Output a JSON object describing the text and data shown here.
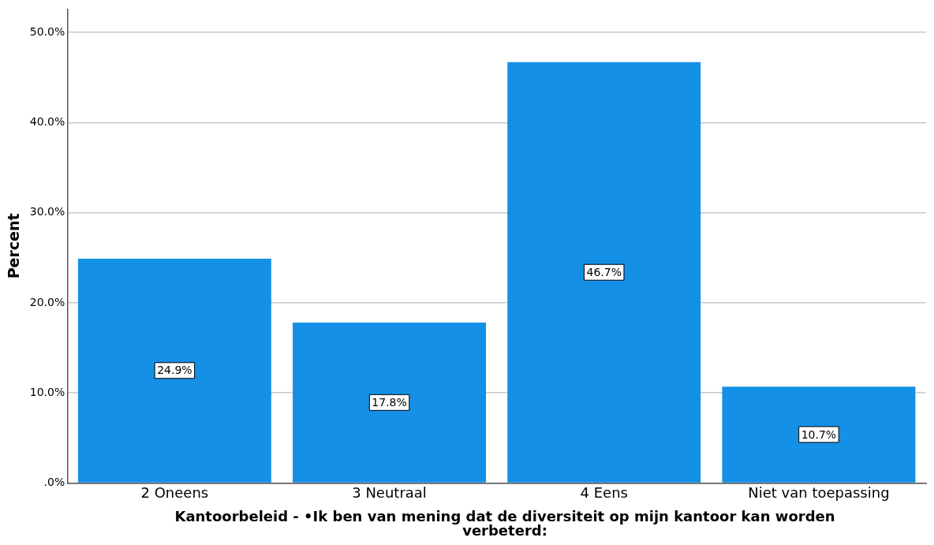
{
  "chart_data": {
    "type": "bar",
    "xlabel": "Kantoorbeleid - •Ik ben van mening dat de diversiteit op mijn kantoor kan worden verbeterd:",
    "ylabel": "Percent",
    "categories": [
      "2 Oneens",
      "3 Neutraal",
      "4 Eens",
      "Niet van toepassing"
    ],
    "values": [
      24.9,
      17.8,
      46.7,
      10.7
    ],
    "color": "#1490e6",
    "value_labels": [
      "24.9%",
      "17.8%",
      "46.7%",
      "10.7%"
    ],
    "ylim": [
      0,
      52.6
    ],
    "yticks": [
      {
        "value": 0,
        "label": ".0%"
      },
      {
        "value": 10,
        "label": "10.0%"
      },
      {
        "value": 20,
        "label": "20.0%"
      },
      {
        "value": 30,
        "label": "30.0%"
      },
      {
        "value": 40,
        "label": "40.0%"
      },
      {
        "value": 50,
        "label": "50.0%"
      }
    ],
    "grid": "y",
    "legend": false
  }
}
